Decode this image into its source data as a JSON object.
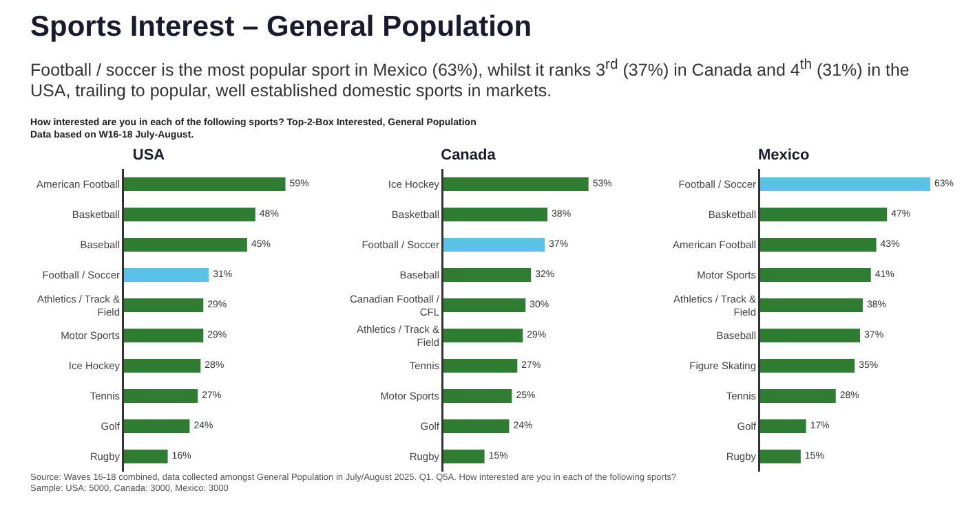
{
  "chart_data": [
    {
      "type": "other",
      "title": "Sports Interest – General Population",
      "subtitle": "Football / soccer is the most popular sport in Mexico (63%), whilst it ranks 3$^{rd}$ (37%) in Canada and 4$^{th}$ (31%) in the USA, trailing to popular, well established domestic sports in markets.",
      "annotations": [
        "How interested are you in each of the following sports? Top-2-Box Interested, General Population",
        "Data based on W16-18 July-August.",
        "Source: Waves 16-18 combined, data collected amongst General Population in July/August 2025. Q1. Q5A. How interested are you in each of the following sports?",
        "Sample: USA: 5000, Canada: 3000, Mexico: 3000"
      ]
    },
    {
      "type": "bar",
      "orientation": "horizontal",
      "title": "USA",
      "tick_labels": "y",
      "categories": [
        "American Football",
        "Basketball",
        "Baseball",
        "Football / Soccer",
        "Athletics / Track & Field",
        "Motor Sports",
        "Ice Hockey",
        "Tennis",
        "Golf",
        "Rugby"
      ],
      "values": [
        59,
        48,
        45,
        31,
        29,
        29,
        28,
        27,
        24,
        16
      ],
      "value_labels": [
        "59%",
        "48%",
        "45%",
        "31%",
        "29%",
        "29%",
        "28%",
        "27%",
        "24%",
        "16%"
      ],
      "colors": [
        "#2e7d32",
        "#2e7d32",
        "#2e7d32",
        "#5bc2e7",
        "#2e7d32",
        "#2e7d32",
        "#2e7d32",
        "#2e7d32",
        "#2e7d32",
        "#2e7d32"
      ]
    },
    {
      "type": "bar",
      "orientation": "horizontal",
      "title": "Canada",
      "tick_labels": "y",
      "categories": [
        "Ice Hockey",
        "Basketball",
        "Football / Soccer",
        "Baseball",
        "Canadian Football / CFL",
        "Athletics / Track & Field",
        "Tennis",
        "Motor Sports",
        "Golf",
        "Rugby"
      ],
      "values": [
        53,
        38,
        37,
        32,
        30,
        29,
        27,
        25,
        24,
        15
      ],
      "value_labels": [
        "53%",
        "38%",
        "37%",
        "32%",
        "30%",
        "29%",
        "27%",
        "25%",
        "24%",
        "15%"
      ],
      "colors": [
        "#2e7d32",
        "#2e7d32",
        "#5bc2e7",
        "#2e7d32",
        "#2e7d32",
        "#2e7d32",
        "#2e7d32",
        "#2e7d32",
        "#2e7d32",
        "#2e7d32"
      ]
    },
    {
      "type": "bar",
      "orientation": "horizontal",
      "title": "Mexico",
      "tick_labels": "y",
      "categories": [
        "Football / Soccer",
        "Basketball",
        "American Football",
        "Motor Sports",
        "Athletics / Track & Field",
        "Baseball",
        "Figure Skating",
        "Tennis",
        "Golf",
        "Rugby"
      ],
      "values": [
        63,
        47,
        43,
        41,
        38,
        37,
        35,
        28,
        17,
        15
      ],
      "value_labels": [
        "63%",
        "47%",
        "43%",
        "41%",
        "38%",
        "37%",
        "35%",
        "28%",
        "17%",
        "15%"
      ],
      "colors": [
        "#5bc2e7",
        "#2e7d32",
        "#2e7d32",
        "#2e7d32",
        "#2e7d32",
        "#2e7d32",
        "#2e7d32",
        "#2e7d32",
        "#2e7d32",
        "#2e7d32"
      ]
    }
  ]
}
